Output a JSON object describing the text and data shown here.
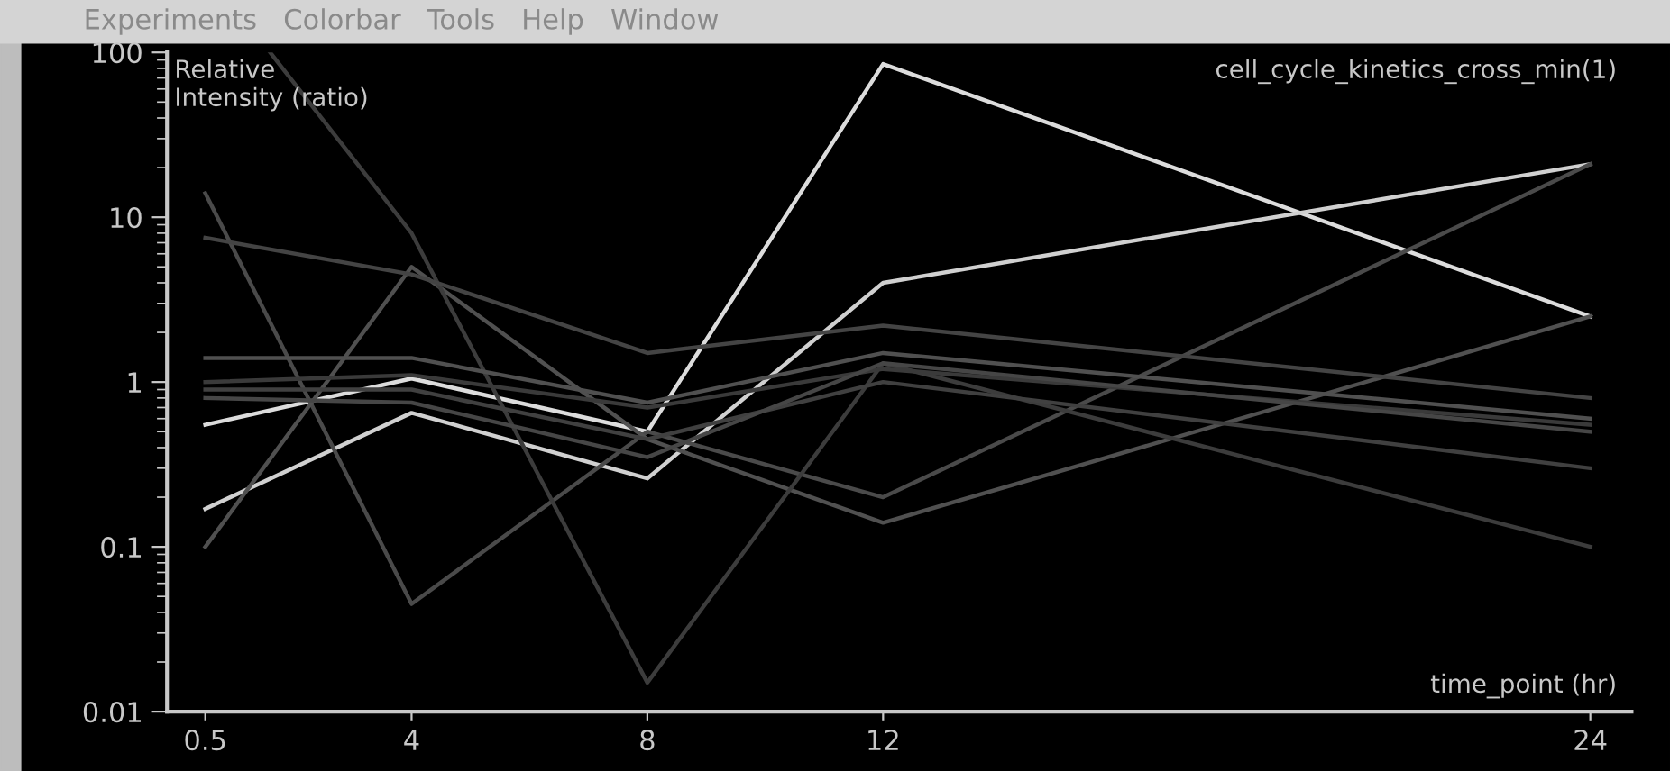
{
  "chart_data": {
    "type": "line",
    "title": "cell_cycle_kinetics_cross_min(1)",
    "xlabel": "time_point (hr)",
    "ylabel": "Relative\nIntensity (ratio)",
    "annotations": [
      "Experiments   Colorbar   Tools   Help   Window"
    ],
    "x": [
      0.5,
      4,
      8,
      12,
      24
    ],
    "log": "y",
    "xlim": [
      -0.15,
      24.7
    ],
    "ylim": [
      0.01,
      100
    ],
    "xticks": [
      0.5,
      4,
      8,
      12,
      24
    ],
    "yticks": [
      0.01,
      0.1,
      1,
      10,
      100
    ],
    "grid": false,
    "legend": false,
    "marker": "none",
    "line_style": "solid",
    "series": [
      {
        "color": "#dcdcdc",
        "values": [
          0.55,
          1.05,
          0.5,
          85,
          2.5
        ]
      },
      {
        "color": "#d0d0d0",
        "values": [
          0.17,
          0.65,
          0.26,
          4,
          21
        ]
      },
      {
        "color": "#4a4a4a",
        "values": [
          14,
          0.045,
          0.5,
          0.2,
          21
        ]
      },
      {
        "color": "#505050",
        "values": [
          0.1,
          5,
          0.45,
          0.14,
          2.5
        ]
      },
      {
        "color": "#3c3c3c",
        "x": [
          1.6,
          4,
          8,
          12,
          24
        ],
        "values": [
          100,
          8,
          0.015,
          1.3,
          0.1
        ]
      },
      {
        "color": "#444444",
        "values": [
          7.5,
          4.5,
          1.5,
          2.2,
          0.8
        ]
      },
      {
        "color": "#505050",
        "values": [
          1.4,
          1.4,
          0.75,
          1.5,
          0.6
        ]
      },
      {
        "color": "#3a3a3a",
        "values": [
          1.0,
          1.1,
          0.7,
          1.2,
          0.55
        ]
      },
      {
        "color": "#404040",
        "values": [
          0.9,
          0.9,
          0.45,
          1.0,
          0.3
        ]
      },
      {
        "color": "#464646",
        "values": [
          0.8,
          0.75,
          0.35,
          1.3,
          0.5
        ]
      }
    ]
  }
}
